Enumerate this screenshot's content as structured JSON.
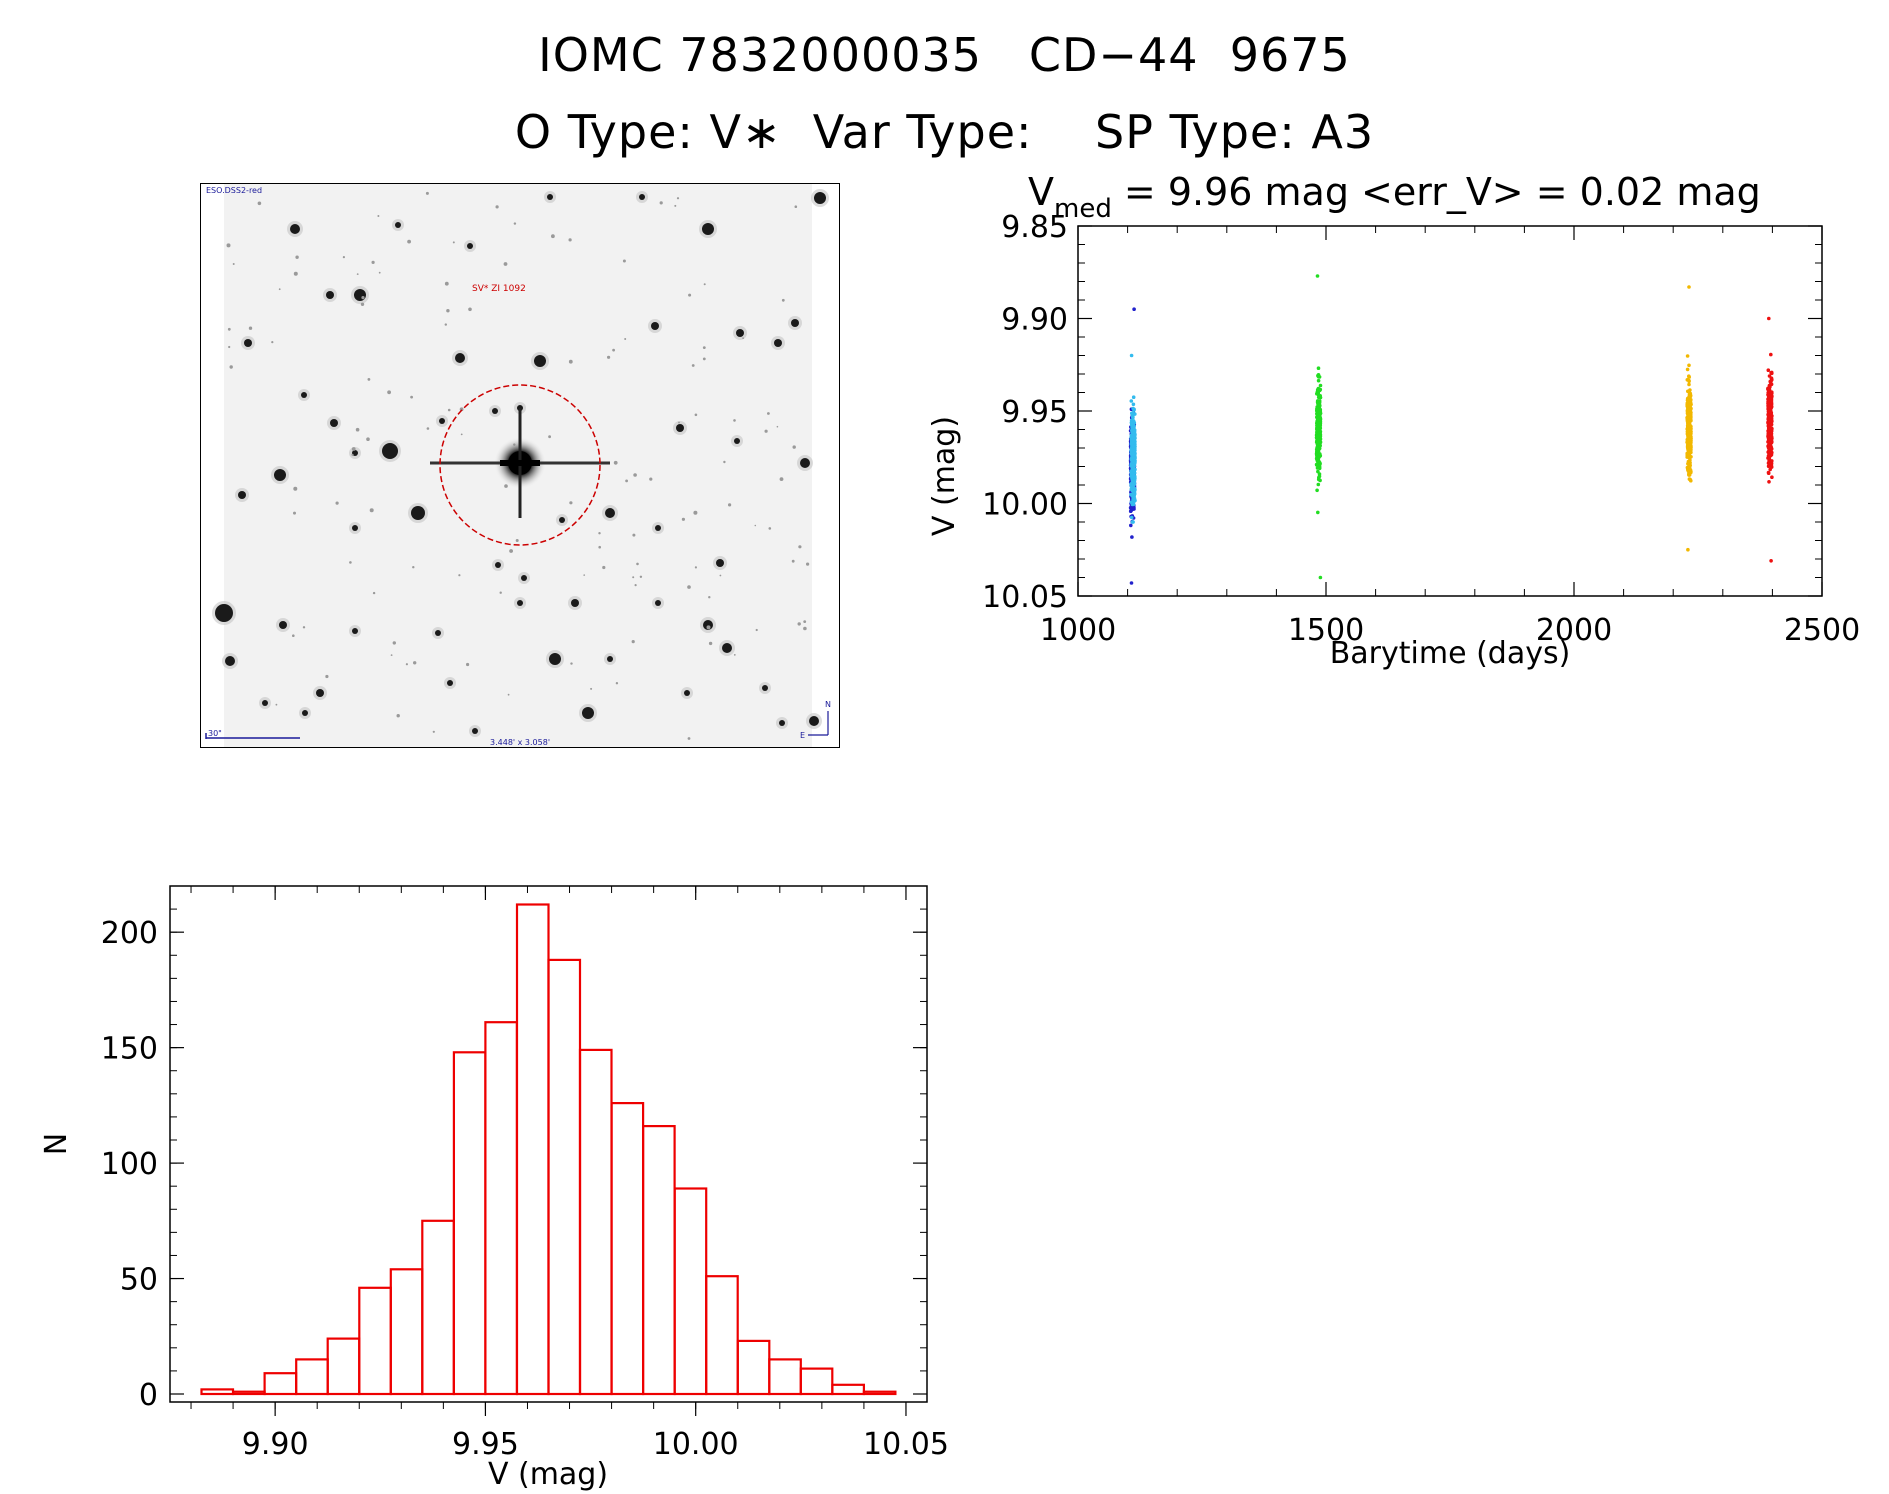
{
  "header": {
    "title_line1": "IOMC 7832000035   CD−44  9675",
    "title_line2": "O Type: V∗  Var Type:    SP Type: A3"
  },
  "finder_chart": {
    "survey_label": "ESO.DSS2-red",
    "object_label": "SV* ZI 1092",
    "scale_label": "30\"",
    "fov_label": "3.448' x 3.058'",
    "north_label": "N",
    "east_label": "E",
    "background_color": "#f2f2f2",
    "marker_color": "#cc0000",
    "annotation_color": "#1a1a99"
  },
  "chart_data": [
    {
      "type": "scatter",
      "title_prefix": "V",
      "title_subscript": "med",
      "title_suffix": " = 9.96 mag <err_V> = 0.02 mag",
      "xlabel": "Barytime (days)",
      "ylabel": "V (mag)",
      "xlim": [
        1000,
        2500
      ],
      "ylim": [
        10.05,
        9.85
      ],
      "y_inverted": true,
      "xticks": [
        1000,
        1500,
        2000,
        2500
      ],
      "yticks": [
        9.85,
        9.9,
        9.95,
        10.0,
        10.05
      ],
      "ytick_labels": [
        "9.85",
        "9.90",
        "9.95",
        "10.00",
        "10.05"
      ],
      "series": [
        {
          "color": "#2222cc",
          "x_center": 1110,
          "y_min": 9.895,
          "y_max": 10.043,
          "y_center": 9.98
        },
        {
          "color": "#33bbee",
          "x_center": 1111,
          "y_min": 9.92,
          "y_max": 10.01,
          "y_center": 9.975
        },
        {
          "color": "#22dd22",
          "x_center": 1485,
          "y_min": 9.877,
          "y_max": 10.04,
          "y_center": 9.96
        },
        {
          "color": "#f2b800",
          "x_center": 2232,
          "y_min": 9.883,
          "y_max": 10.025,
          "y_center": 9.96
        },
        {
          "color": "#ee1111",
          "x_center": 2395,
          "y_min": 9.9,
          "y_max": 10.031,
          "y_center": 9.958
        }
      ]
    },
    {
      "type": "bar",
      "xlabel": "V (mag)",
      "ylabel": "N",
      "xlim": [
        9.875,
        10.055
      ],
      "ylim": [
        0,
        220
      ],
      "xticks": [
        9.9,
        9.95,
        10.0,
        10.05
      ],
      "xtick_labels": [
        "9.90",
        "9.95",
        "10.00",
        "10.05"
      ],
      "yticks": [
        0,
        50,
        100,
        150,
        200
      ],
      "bin_edges": [
        9.8825,
        9.89,
        9.8975,
        9.905,
        9.9125,
        9.92,
        9.9275,
        9.935,
        9.9425,
        9.95,
        9.9575,
        9.965,
        9.9725,
        9.98,
        9.9875,
        9.995,
        10.0025,
        10.01,
        10.0175,
        10.025,
        10.0325,
        10.04,
        10.0475
      ],
      "values": [
        2,
        1,
        9,
        15,
        24,
        46,
        54,
        75,
        148,
        161,
        212,
        188,
        149,
        126,
        116,
        89,
        51,
        23,
        15,
        11,
        4,
        1
      ],
      "color": "#ee0000"
    }
  ]
}
